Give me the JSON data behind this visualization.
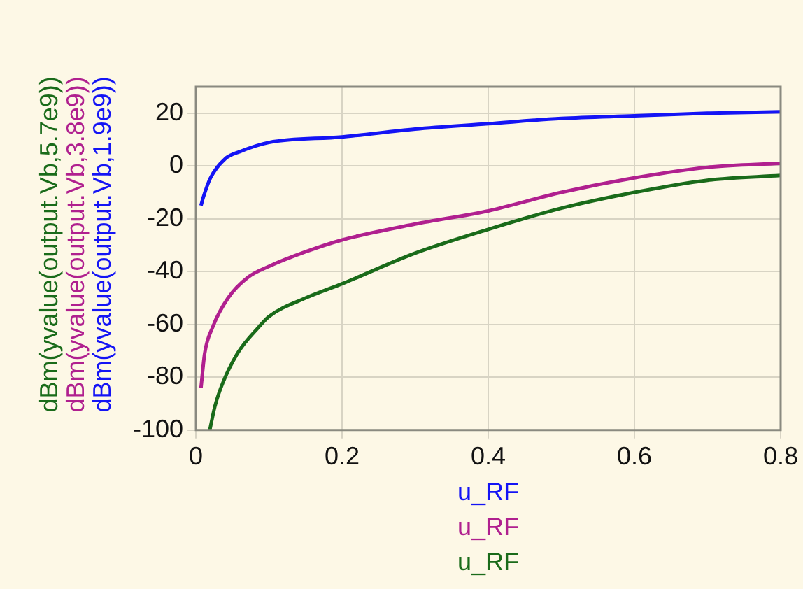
{
  "chart_data": {
    "type": "line",
    "xlabel": "u_RF",
    "xlim": [
      0,
      0.8
    ],
    "xticks": [
      0,
      0.2,
      0.4,
      0.6,
      0.8
    ],
    "ylim": [
      -100,
      30
    ],
    "yticks": [
      -100,
      -80,
      -60,
      -40,
      -20,
      0,
      20
    ],
    "grid": true,
    "legend": false,
    "marker": "none",
    "line_style": "solid",
    "series": [
      {
        "name": "dBm(yvalue(output.Vb,1.9e9))",
        "color": "#1414f5",
        "x": [
          0.007,
          0.01,
          0.02,
          0.04,
          0.06,
          0.1,
          0.2,
          0.3,
          0.4,
          0.5,
          0.6,
          0.7,
          0.8
        ],
        "values": [
          -15,
          -12,
          -4.5,
          2.7,
          5.4,
          8.9,
          11,
          14,
          16,
          18,
          19,
          20,
          20.5
        ]
      },
      {
        "name": "dBm(yvalue(output.Vb,3.8e9))",
        "color": "#b0208f",
        "x": [
          0.007,
          0.012,
          0.023,
          0.044,
          0.072,
          0.1,
          0.15,
          0.2,
          0.3,
          0.4,
          0.5,
          0.6,
          0.7,
          0.8
        ],
        "values": [
          -84,
          -71,
          -61,
          -50,
          -42,
          -38,
          -32.5,
          -28,
          -22,
          -17,
          -10,
          -4.5,
          -0.5,
          1
        ]
      },
      {
        "name": "dBm(yvalue(output.Vb,5.7e9))",
        "color": "#1a6b1a",
        "x": [
          0.019,
          0.026,
          0.037,
          0.058,
          0.086,
          0.1,
          0.15,
          0.2,
          0.3,
          0.4,
          0.5,
          0.6,
          0.7,
          0.8
        ],
        "values": [
          -100,
          -91,
          -82,
          -70.5,
          -61,
          -57,
          -50,
          -44.6,
          -33,
          -24,
          -16,
          -10,
          -5.4,
          -3.6
        ]
      }
    ]
  }
}
